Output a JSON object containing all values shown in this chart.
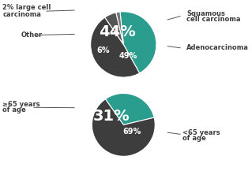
{
  "pie1": {
    "values": [
      44,
      49,
      6,
      2
    ],
    "colors": [
      "#2a9d8f",
      "#3d3d3d",
      "#555555",
      "#777777"
    ],
    "startangle": 96,
    "counterclock": false
  },
  "pie2": {
    "values": [
      31,
      69
    ],
    "colors": [
      "#2a9d8f",
      "#3d3d3d"
    ],
    "startangle": 125,
    "counterclock": false
  },
  "bg_color": "#ffffff",
  "text_color": "#3d3d3d",
  "teal": "#2a9d8f",
  "dark_gray": "#3d3d3d",
  "label_fontsize": 6.0,
  "big_pct_fontsize": 14,
  "small_pct_fontsize": 7
}
